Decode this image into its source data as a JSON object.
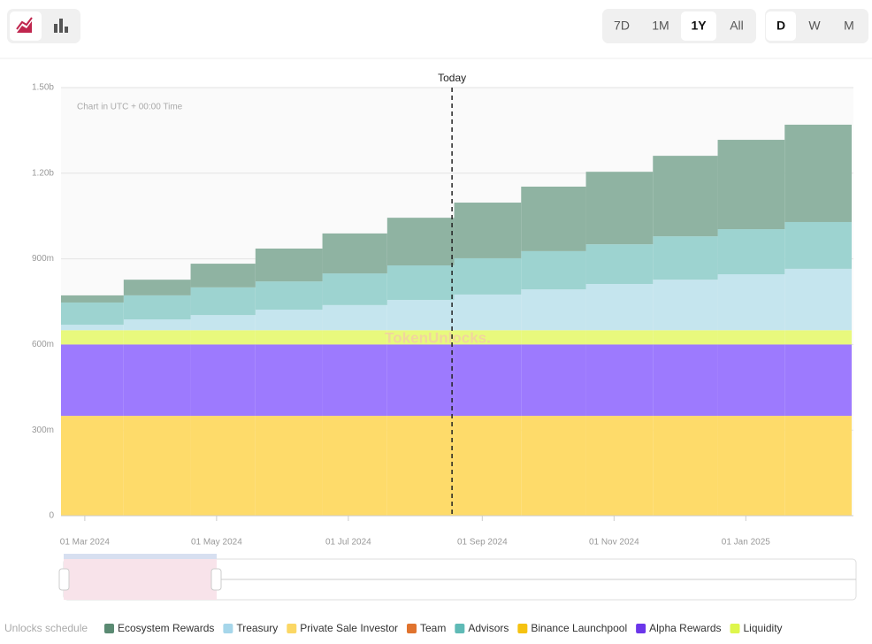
{
  "chart_data": {
    "type": "stacked-step-area",
    "toolbar": {
      "ranges": [
        "7D",
        "1M",
        "1Y",
        "All"
      ],
      "active_range": "1Y",
      "intervals": [
        "D",
        "W",
        "M"
      ],
      "active_interval": "D"
    },
    "note": "Chart in UTC + 00:00 Time",
    "watermark": "TokenUnlocks.",
    "today": {
      "label": "Today",
      "x": "2024-08-18"
    },
    "legend_title": "Unlocks schedule",
    "x": [
      "2024-02-19",
      "2024-03-19",
      "2024-04-19",
      "2024-05-19",
      "2024-06-19",
      "2024-07-19",
      "2024-08-19",
      "2024-09-19",
      "2024-10-19",
      "2024-11-19",
      "2024-12-19",
      "2025-01-19"
    ],
    "xlim": [
      "2024-02-19",
      "2025-02-19"
    ],
    "xticks": [
      {
        "value": "2024-03-01",
        "label": "01 Mar 2024"
      },
      {
        "value": "2024-05-01",
        "label": "01 May 2024"
      },
      {
        "value": "2024-07-01",
        "label": "01 Jul 2024"
      },
      {
        "value": "2024-09-01",
        "label": "01 Sep 2024"
      },
      {
        "value": "2024-11-01",
        "label": "01 Nov 2024"
      },
      {
        "value": "2025-01-01",
        "label": "01 Jan 2025"
      }
    ],
    "ylim": [
      0,
      1500
    ],
    "yticks": [
      {
        "value": 0,
        "label": "0"
      },
      {
        "value": 300,
        "label": "300m"
      },
      {
        "value": 600,
        "label": "600m"
      },
      {
        "value": 900,
        "label": "900m"
      },
      {
        "value": 1200,
        "label": "1.20b"
      },
      {
        "value": 1500,
        "label": "1.50b"
      }
    ],
    "grid": true,
    "series": [
      {
        "name": "Ecosystem Rewards",
        "color": "#5a8a72",
        "fill": "#8fb3a2",
        "values": [
          25,
          55,
          83,
          115,
          140,
          167,
          195,
          226,
          254,
          282,
          313,
          341
        ]
      },
      {
        "name": "Treasury",
        "color": "#a6d6ea",
        "fill": "#c5e5ee",
        "values": [
          19,
          38,
          53,
          72,
          88,
          106,
          125,
          143,
          162,
          177,
          196,
          215
        ]
      },
      {
        "name": "Private Sale Investor",
        "color": "#fbd764",
        "fill": "#fdda6a",
        "values": [
          0,
          0,
          0,
          0,
          0,
          0,
          0,
          0,
          0,
          0,
          0,
          0
        ]
      },
      {
        "name": "Team",
        "color": "#e0732e",
        "fill": "#eca06f",
        "values": [
          0,
          0,
          0,
          0,
          0,
          0,
          0,
          0,
          0,
          0,
          0,
          0
        ]
      },
      {
        "name": "Advisors",
        "color": "#5fbab6",
        "fill": "#9dd3d0",
        "values": [
          78,
          84,
          97,
          99,
          111,
          121,
          127,
          134,
          139,
          152,
          158,
          164
        ]
      },
      {
        "name": "Binance Launchpool",
        "color": "#f5c211",
        "fill": "#fedb6a",
        "values": [
          350,
          350,
          350,
          350,
          350,
          350,
          350,
          350,
          350,
          350,
          350,
          350
        ]
      },
      {
        "name": "Alpha Rewards",
        "color": "#6b36ea",
        "fill": "#9d7afe",
        "values": [
          250,
          250,
          250,
          250,
          250,
          250,
          250,
          250,
          250,
          250,
          250,
          250
        ]
      },
      {
        "name": "Liquidity",
        "color": "#def64c",
        "fill": "#e8f97d",
        "values": [
          50,
          50,
          50,
          50,
          50,
          50,
          50,
          50,
          50,
          50,
          50,
          50
        ]
      }
    ]
  }
}
